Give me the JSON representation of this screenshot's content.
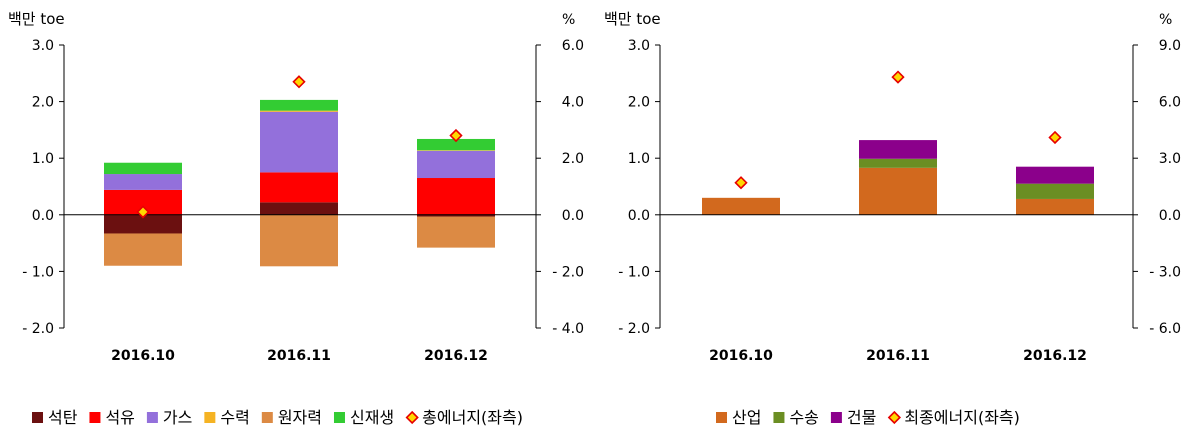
{
  "chart_data": [
    {
      "type": "bar",
      "stacked": true,
      "categories": [
        "2016.10",
        "2016.11",
        "2016.12"
      ],
      "ylabel_left": "백만 toe",
      "ylabel_right": "%",
      "ylim": [
        -2.0,
        3.0
      ],
      "y2lim": [
        -4.0,
        6.0
      ],
      "yticks": [
        "3.0",
        "2.0",
        "1.0",
        "0.0",
        "- 1.0",
        "- 2.0"
      ],
      "y2ticks": [
        "6.0",
        "4.0",
        "2.0",
        "0.0",
        "- 2.0",
        "- 4.0"
      ],
      "series": [
        {
          "name": "석탄",
          "color": "#6b1010",
          "values": [
            -0.33,
            0.22,
            -0.03
          ]
        },
        {
          "name": "석유",
          "color": "#ff0000",
          "values": [
            0.44,
            0.53,
            0.65
          ]
        },
        {
          "name": "가스",
          "color": "#9370db",
          "values": [
            0.28,
            1.07,
            0.48
          ]
        },
        {
          "name": "수력",
          "color": "#f5b323",
          "values": [
            0.0,
            0.02,
            0.01
          ]
        },
        {
          "name": "원자력",
          "color": "#dc8a44",
          "values": [
            -0.57,
            -0.91,
            -0.55
          ]
        },
        {
          "name": "신재생",
          "color": "#33cc33",
          "values": [
            0.2,
            0.19,
            0.2
          ]
        }
      ],
      "line_series": {
        "name": "총에너지(좌측)",
        "axis": "right",
        "values": [
          0.1,
          4.7,
          2.8
        ]
      }
    },
    {
      "type": "bar",
      "stacked": true,
      "categories": [
        "2016.10",
        "2016.11",
        "2016.12"
      ],
      "ylabel_left": "백만 toe",
      "ylabel_right": "%",
      "ylim": [
        -2.0,
        3.0
      ],
      "y2lim": [
        -6.0,
        9.0
      ],
      "yticks": [
        "3.0",
        "2.0",
        "1.0",
        "0.0",
        "- 1.0",
        "- 2.0"
      ],
      "y2ticks": [
        "9.0",
        "6.0",
        "3.0",
        "0.0",
        "- 3.0",
        "- 6.0"
      ],
      "series": [
        {
          "name": "산업",
          "color": "#d2691e",
          "values": [
            0.3,
            0.83,
            0.28
          ]
        },
        {
          "name": "수송",
          "color": "#6b8e23",
          "values": [
            0.0,
            0.16,
            0.27
          ]
        },
        {
          "name": "건물",
          "color": "#8b008b",
          "values": [
            0.0,
            0.33,
            0.3
          ]
        }
      ],
      "line_series": {
        "name": "최종에너지(좌측)",
        "axis": "right",
        "values": [
          1.7,
          7.3,
          4.1
        ]
      }
    }
  ],
  "legend": {
    "left": [
      {
        "label": "석탄",
        "color": "#6b1010",
        "marker": "square"
      },
      {
        "label": "석유",
        "color": "#ff0000",
        "marker": "square"
      },
      {
        "label": "가스",
        "color": "#9370db",
        "marker": "square"
      },
      {
        "label": "수력",
        "color": "#f5b323",
        "marker": "square"
      },
      {
        "label": "원자력",
        "color": "#dc8a44",
        "marker": "square"
      },
      {
        "label": "신재생",
        "color": "#33cc33",
        "marker": "square"
      },
      {
        "label": "총에너지(좌측)",
        "color": "#ffd700",
        "marker": "diamond"
      }
    ],
    "right": [
      {
        "label": "산업",
        "color": "#d2691e",
        "marker": "square"
      },
      {
        "label": "수송",
        "color": "#6b8e23",
        "marker": "square"
      },
      {
        "label": "건물",
        "color": "#8b008b",
        "marker": "square"
      },
      {
        "label": "최종에너지(좌측)",
        "color": "#ffd700",
        "marker": "diamond"
      }
    ]
  }
}
